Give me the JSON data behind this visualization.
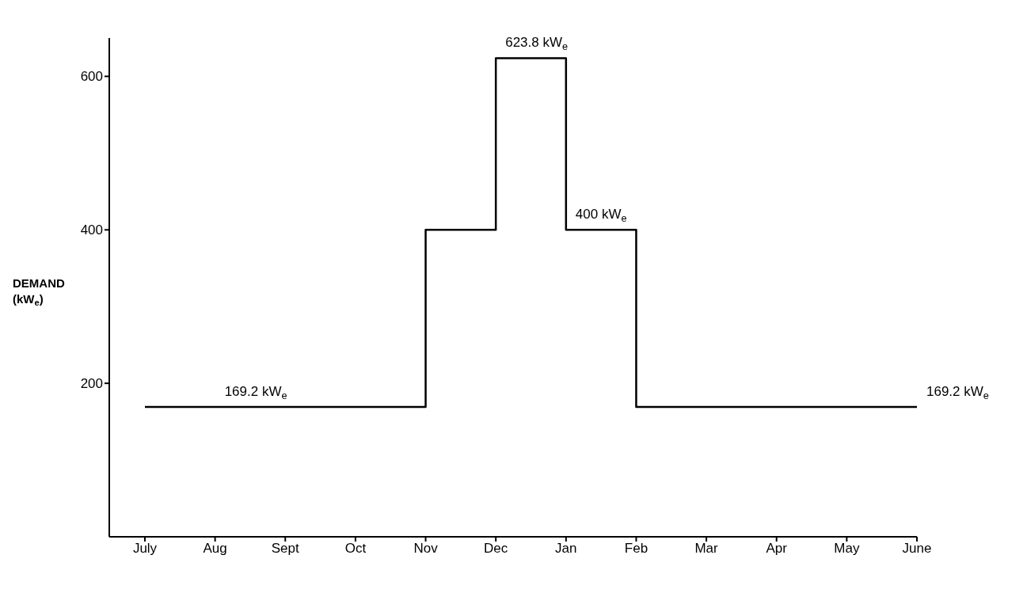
{
  "chart_data": {
    "type": "step",
    "ylabel": "DEMAND (kW$_{e}$)",
    "categories": [
      "July",
      "Aug",
      "Sept",
      "Oct",
      "Nov",
      "Dec",
      "Jan",
      "Feb",
      "Mar",
      "Apr",
      "May",
      "June"
    ],
    "series": [
      {
        "color": "#000000",
        "values": [
          169.2,
          169.2,
          169.2,
          169.2,
          400,
          623.8,
          400,
          169.2,
          169.2,
          169.2,
          169.2,
          169.2
        ],
        "value_labels": [
          null,
          "169.2 kW$_{e}$",
          null,
          null,
          null,
          "623.8 kW$_{e}$",
          "400 kW$_{e}$",
          null,
          null,
          null,
          null,
          "169.2 kW$_{e}$"
        ]
      }
    ],
    "ylim": [
      0,
      650
    ],
    "yticks": [
      200,
      400,
      600
    ],
    "grid": false,
    "legend": false,
    "marker": "none",
    "line_style": "solid"
  }
}
